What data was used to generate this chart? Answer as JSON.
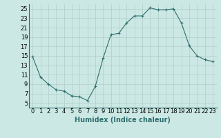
{
  "x": [
    0,
    1,
    2,
    3,
    4,
    5,
    6,
    7,
    8,
    9,
    10,
    11,
    12,
    13,
    14,
    15,
    16,
    17,
    18,
    19,
    20,
    21,
    22,
    23
  ],
  "y": [
    14.8,
    10.5,
    9.0,
    7.8,
    7.5,
    6.5,
    6.3,
    5.5,
    8.5,
    14.5,
    19.5,
    19.8,
    22.0,
    23.5,
    23.5,
    25.2,
    24.8,
    24.8,
    25.0,
    22.0,
    17.2,
    15.0,
    14.2,
    13.8
  ],
  "xlim": [
    -0.5,
    23.5
  ],
  "ylim": [
    4,
    26
  ],
  "yticks": [
    5,
    7,
    9,
    11,
    13,
    15,
    17,
    19,
    21,
    23,
    25
  ],
  "xticks": [
    0,
    1,
    2,
    3,
    4,
    5,
    6,
    7,
    8,
    9,
    10,
    11,
    12,
    13,
    14,
    15,
    16,
    17,
    18,
    19,
    20,
    21,
    22,
    23
  ],
  "xlabel": "Humidex (Indice chaleur)",
  "line_color": "#2e6e6e",
  "marker": "+",
  "bg_color": "#cce8e4",
  "grid_color": "#b0ceca",
  "xlabel_fontsize": 7,
  "tick_fontsize": 6
}
